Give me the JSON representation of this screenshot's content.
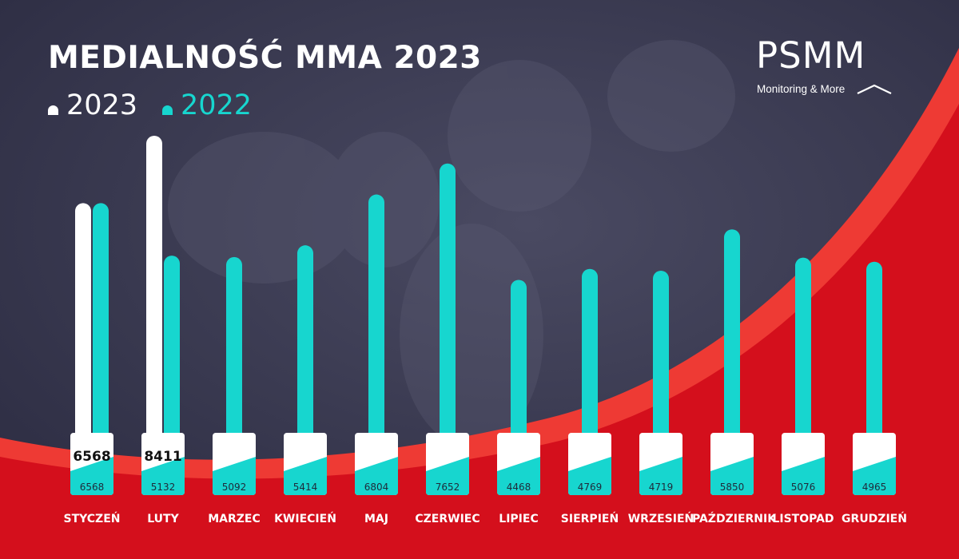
{
  "title": "MEDIALNOŚĆ MMA 2023",
  "legend": [
    {
      "label": "2023",
      "color": "#ffffff"
    },
    {
      "label": "2022",
      "color": "#17d6cf"
    }
  ],
  "logo": {
    "brand": "PSMM",
    "tagline": "Monitoring & More"
  },
  "colors": {
    "background": "#33334a",
    "red": "#d40f1c",
    "red_light": "#ee3a34",
    "teal": "#17d6cf",
    "white": "#ffffff"
  },
  "chart_data": {
    "type": "bar",
    "categories": [
      "STYCZEŃ",
      "LUTY",
      "MARZEC",
      "KWIECIEŃ",
      "MAJ",
      "CZERWIEC",
      "LIPIEC",
      "SIERPIEŃ",
      "WRZESIEŃ",
      "PAŹDZIERNIK",
      "LISTOPAD",
      "GRUDZIEŃ"
    ],
    "series": [
      {
        "name": "2023",
        "color": "#ffffff",
        "values": [
          6568,
          8411,
          null,
          null,
          null,
          null,
          null,
          null,
          null,
          null,
          null,
          null
        ]
      },
      {
        "name": "2022",
        "color": "#17d6cf",
        "values": [
          6568,
          5132,
          5092,
          5414,
          6804,
          7652,
          4468,
          4769,
          4719,
          5850,
          5076,
          4965
        ]
      }
    ],
    "data_labels": {
      "2023": [
        "6568",
        "8411",
        "",
        "",
        "",
        "",
        "",
        "",
        "",
        "",
        "",
        ""
      ],
      "2022": [
        "6568",
        "5132",
        "5092",
        "5414",
        "6804",
        "7652",
        "4468",
        "4769",
        "4719",
        "5850",
        "5076",
        "4965"
      ]
    },
    "title": "MEDIALNOŚĆ MMA 2023",
    "legend_position": "top-left",
    "grid": false
  }
}
